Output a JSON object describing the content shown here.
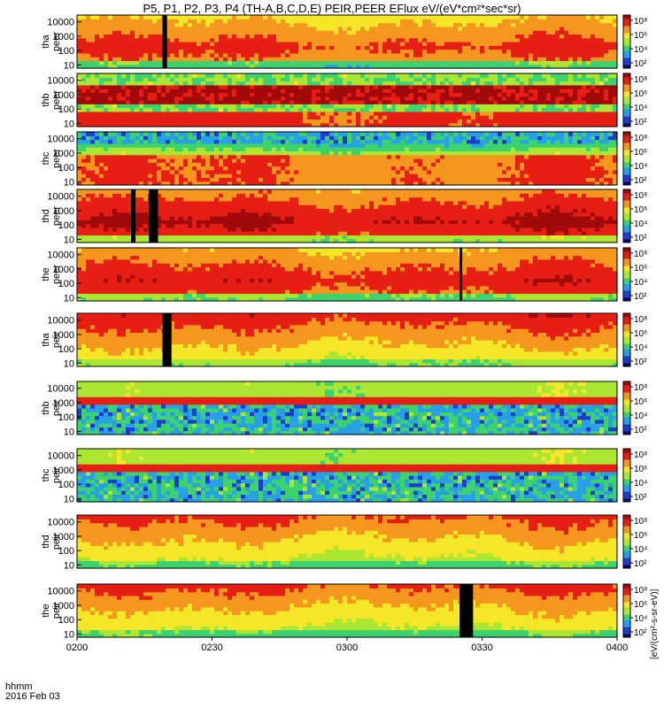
{
  "title": "P5, P1, P2, P3, P4 (TH-A,B,C,D,E) PEIR,PEER EFlux eV/(eV*cm²*sec*sr)",
  "x_corner": {
    "line1": "hhmm",
    "line2": "2016 Feb 03"
  },
  "colorbar_label": "[eV/(cm²-s-sr-eV)]",
  "colors": {
    "colormap": [
      "#0a0a6e",
      "#1e3ccd",
      "#28a0e6",
      "#3cd26e",
      "#aae632",
      "#f5e628",
      "#f5961e",
      "#e61e14",
      "#a00a0a"
    ],
    "saturated": "#000000"
  },
  "chart_data": {
    "type": "heatmap",
    "x_ticks": [
      "0200",
      "0230",
      "0300",
      "0330",
      "0400"
    ],
    "x_range": [
      "0200",
      "0400"
    ],
    "y_scale": "log",
    "y_range": [
      6,
      30000
    ],
    "colorbar_scale": "log",
    "colorbar_ticks": [
      "10²",
      "10⁴",
      "10⁶",
      "10⁸"
    ],
    "panels": [
      {
        "probe": "tha",
        "species": "peer",
        "y_ticks": [
          "10",
          "100",
          "1000",
          "10000"
        ],
        "profile": "electron",
        "base": 0.75,
        "gaps": [
          [
            "0219",
            "0220"
          ]
        ]
      },
      {
        "probe": "thb",
        "species": "peer",
        "y_ticks": [
          "10",
          "100",
          "1000",
          "10000"
        ],
        "profile": "sheath",
        "base": 0.85,
        "gaps": []
      },
      {
        "probe": "thc",
        "species": "peer",
        "y_ticks": [
          "10",
          "100",
          "1000",
          "10000"
        ],
        "profile": "sheath2",
        "base": 0.8,
        "gaps": []
      },
      {
        "probe": "thd",
        "species": "peer",
        "y_ticks": [
          "10",
          "100",
          "1000",
          "10000"
        ],
        "profile": "electron",
        "base": 0.85,
        "gaps": [
          [
            "0212",
            "0213"
          ],
          [
            "0216",
            "0218"
          ]
        ]
      },
      {
        "probe": "the",
        "species": "peer",
        "y_ticks": [
          "10",
          "100",
          "1000",
          "10000"
        ],
        "profile": "electron",
        "base": 0.8,
        "gaps": [
          [
            "0325",
            "0325.6"
          ]
        ]
      },
      {
        "probe": "tha",
        "species": "peir",
        "y_ticks": [
          "10",
          "100",
          "1000",
          "10000"
        ],
        "profile": "ion",
        "base": 0.65,
        "gaps": [
          [
            "0219",
            "0221"
          ]
        ]
      },
      {
        "probe": "thb",
        "species": "peir",
        "y_ticks": [
          "10",
          "100",
          "1000",
          "10000"
        ],
        "profile": "band",
        "base": 0.55,
        "gaps": []
      },
      {
        "probe": "thc",
        "species": "peir",
        "y_ticks": [
          "10",
          "100",
          "1000",
          "10000"
        ],
        "profile": "band",
        "base": 0.55,
        "gaps": []
      },
      {
        "probe": "thd",
        "species": "peir",
        "y_ticks": [
          "10",
          "100",
          "1000",
          "10000"
        ],
        "profile": "ion",
        "base": 0.6,
        "gaps": []
      },
      {
        "probe": "the",
        "species": "peir",
        "y_ticks": [
          "10",
          "100",
          "1000",
          "10000"
        ],
        "profile": "ion",
        "base": 0.6,
        "gaps": [
          [
            "0325",
            "0328"
          ]
        ]
      }
    ]
  }
}
